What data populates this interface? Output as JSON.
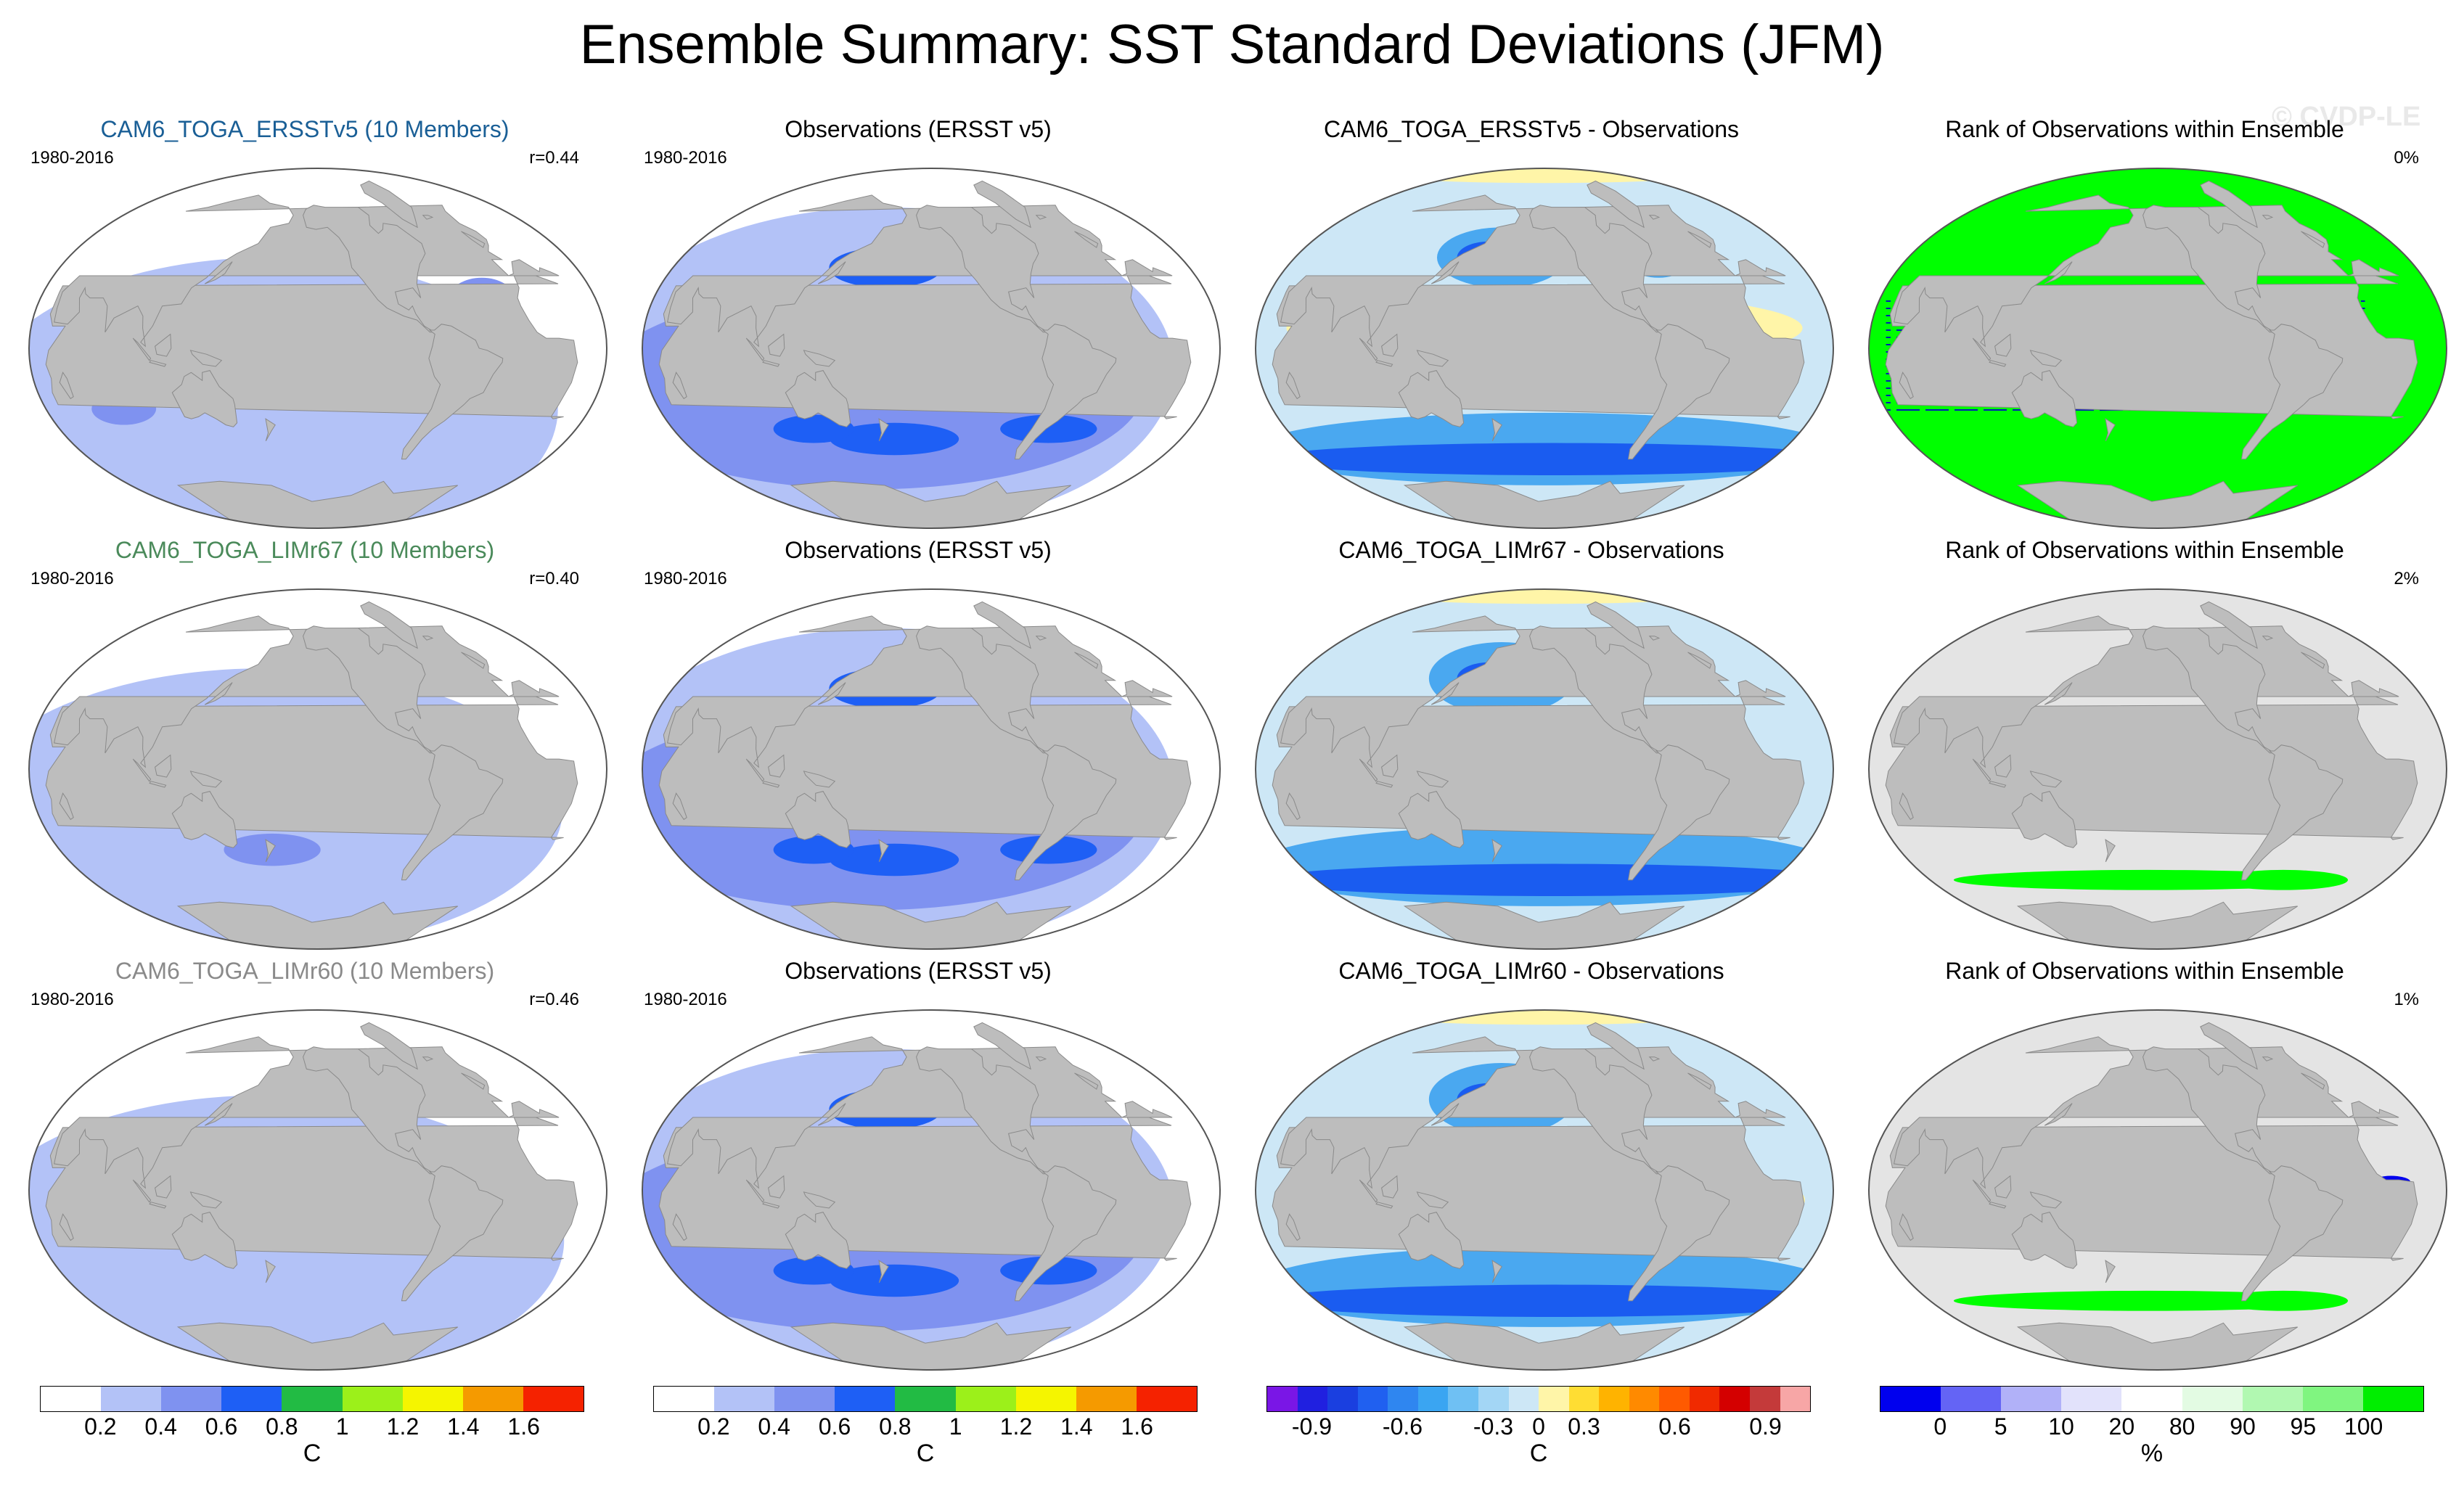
{
  "title": "Ensemble Summary: SST Standard Deviations (JFM)",
  "watermark": "© CVDP-LE",
  "colors": {
    "land": "#bdbdbd",
    "ocean_lowvar": "#ffffff",
    "sd_light": "#b3c2f7",
    "sd_mid": "#7f92f0",
    "sd_blue": "#1e5ff5",
    "sd_green": "#22bb44",
    "sd_lime": "#9cf01a",
    "sd_yellow": "#f5f500",
    "diff_pale": "#cde7f6",
    "diff_light": "#94d1ef",
    "diff_mid": "#4aa8f0",
    "diff_dark": "#1a5cf0",
    "diff_yellow": "#fff5a8",
    "rank_bg": "#e4e4e4",
    "rank_green": "#00ff00",
    "rank_blue": "#0000ee"
  },
  "rows": [
    {
      "model_title": "CAM6_TOGA_ERSSTv5 (10 Members)",
      "model_color": "#1a5f96",
      "period": "1980-2016",
      "corr": "r=0.44",
      "obs_title": "Observations (ERSST v5)",
      "obs_period": "1980-2016",
      "diff_title": "CAM6_TOGA_ERSSTv5 - Observations",
      "rank_title": "Rank of Observations within Ensemble",
      "rank_pct": "0%"
    },
    {
      "model_title": "CAM6_TOGA_LIMr67 (10 Members)",
      "model_color": "#4a8a5a",
      "period": "1980-2016",
      "corr": "r=0.40",
      "obs_title": "Observations (ERSST v5)",
      "obs_period": "1980-2016",
      "diff_title": "CAM6_TOGA_LIMr67 - Observations",
      "rank_title": "Rank of Observations within Ensemble",
      "rank_pct": "2%"
    },
    {
      "model_title": "CAM6_TOGA_LIMr60 (10 Members)",
      "model_color": "#8a8a8a",
      "period": "1980-2016",
      "corr": "r=0.46",
      "obs_title": "Observations (ERSST v5)",
      "obs_period": "1980-2016",
      "diff_title": "CAM6_TOGA_LIMr60 - Observations",
      "rank_title": "Rank of Observations within Ensemble",
      "rank_pct": "1%"
    }
  ],
  "colorbars": [
    {
      "name": "sd-model",
      "colors": [
        "#ffffff",
        "#b3c2f7",
        "#7f92f0",
        "#1e5ff5",
        "#22bb44",
        "#9cf01a",
        "#f5f500",
        "#f59a00",
        "#f52200"
      ],
      "ticks": [
        "0.2",
        "0.4",
        "0.6",
        "0.8",
        "1",
        "1.2",
        "1.4",
        "1.6"
      ],
      "unit": "C"
    },
    {
      "name": "sd-obs",
      "colors": [
        "#ffffff",
        "#b3c2f7",
        "#7f92f0",
        "#1e5ff5",
        "#22bb44",
        "#9cf01a",
        "#f5f500",
        "#f59a00",
        "#f52200"
      ],
      "ticks": [
        "0.2",
        "0.4",
        "0.6",
        "0.8",
        "1",
        "1.2",
        "1.4",
        "1.6"
      ],
      "unit": "C"
    },
    {
      "name": "diff",
      "colors": [
        "#7a16e6",
        "#2020e0",
        "#1a3fe0",
        "#2060f0",
        "#2f86f0",
        "#3aa5f2",
        "#6fc0f3",
        "#a3d6f5",
        "#cde7f6",
        "#fff5a8",
        "#ffdd33",
        "#ffb300",
        "#ff8a00",
        "#ff5a00",
        "#f02a00",
        "#d40000",
        "#c43a3a",
        "#f7a6a6"
      ],
      "ticks": [
        "-0.9",
        "-0.6",
        "-0.3",
        "0",
        "0.3",
        "0.6",
        "0.9"
      ],
      "unit": "C"
    },
    {
      "name": "rank",
      "colors": [
        "#0000ee",
        "#6464f5",
        "#b1b1f8",
        "#e2e2fb",
        "#ffffff",
        "#e3fbe3",
        "#b1f8b1",
        "#80f580",
        "#00ee00"
      ],
      "ticks": [
        "0",
        "5",
        "10",
        "20",
        "80",
        "90",
        "95",
        "100"
      ],
      "unit": "%"
    }
  ]
}
